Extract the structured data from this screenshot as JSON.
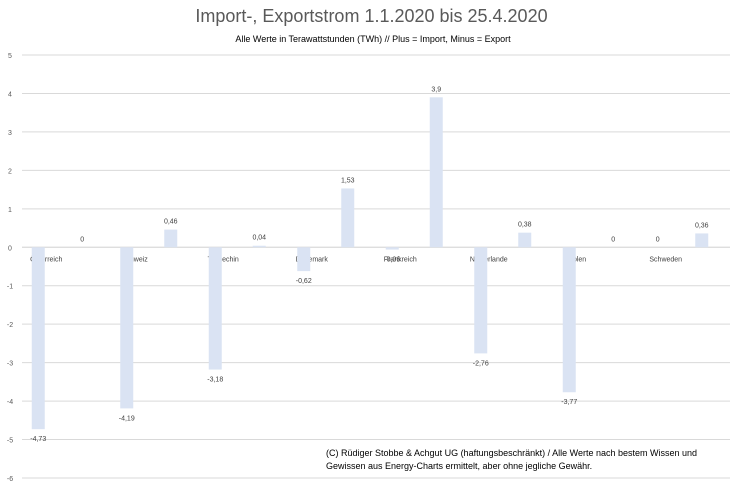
{
  "chart_data": {
    "type": "bar",
    "title": "Import-, Exportstrom 1.1.2020 bis 25.4.2020",
    "subtitle": "Alle Werte in Terawattstunden (TWh) // Plus = Import, Minus = Export",
    "categories": [
      "Österreich",
      "Schweiz",
      "Tschechin",
      "Dänemark",
      "Frankreich",
      "Niederlande",
      "Polen",
      "Schweden"
    ],
    "yticks": [
      "5",
      "4",
      "3",
      "2",
      "1",
      "0",
      "-1",
      "-2",
      "-3",
      "-4",
      "-5",
      "-6"
    ],
    "ylim": [
      -6,
      5
    ],
    "series": [
      {
        "values": [
          -4.73,
          -4.19,
          -3.18,
          -0.62,
          -0.06,
          -2.76,
          -3.77,
          0
        ]
      },
      {
        "values": [
          0,
          0.46,
          0.04,
          1.53,
          3.9,
          0.38,
          0,
          0.36
        ]
      }
    ],
    "data_labels": [
      [
        "-4,73",
        "-4,19",
        "-3,18",
        "-0,62",
        "-0,06",
        "-2,76",
        "-3,77",
        "0"
      ],
      [
        "0",
        "0,46",
        "0,04",
        "1,53",
        "3,9",
        "0,38",
        "0",
        "0,36"
      ]
    ],
    "bar_color": "#dae3f3",
    "grid": true,
    "legend": "none"
  },
  "footnote": "(C) Rüdiger Stobbe & Achgut UG (haftungsbeschränkt) / Alle Werte nach bestem Wissen und Gewissen aus Energy-Charts ermittelt, aber ohne jegliche Gewähr."
}
